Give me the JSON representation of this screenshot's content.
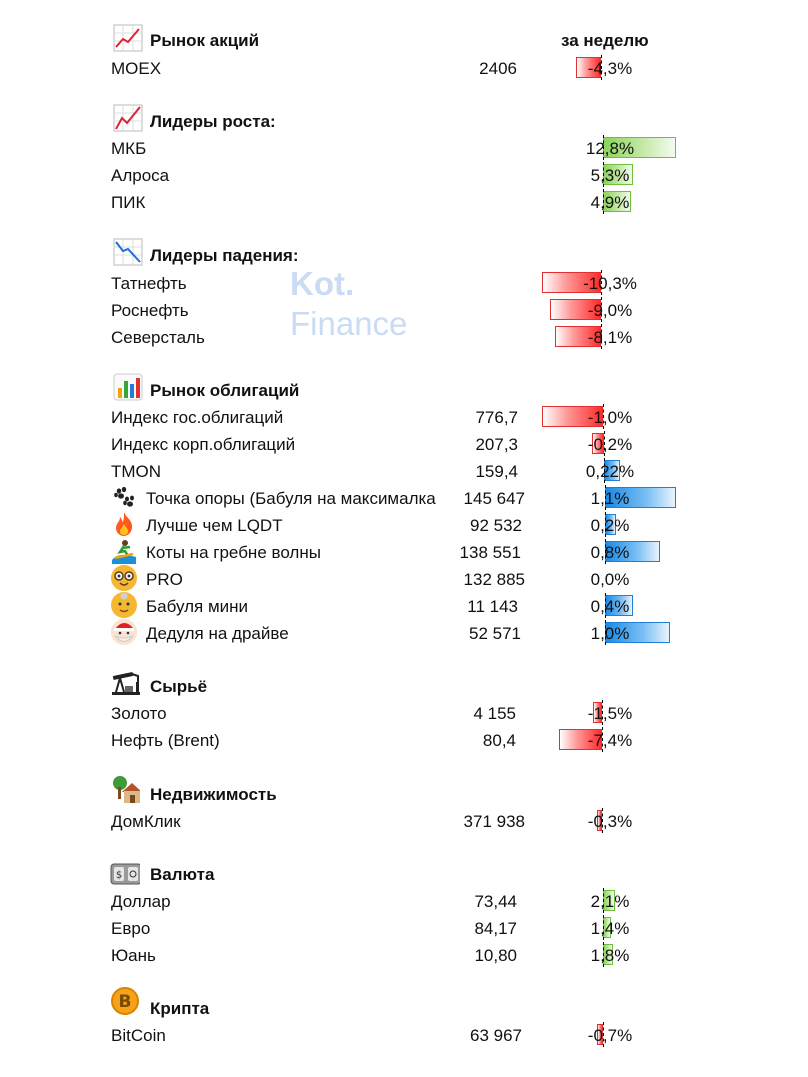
{
  "header": {
    "week_label": "за неделю"
  },
  "watermark": {
    "line1": "Kot.",
    "line2": "Finance"
  },
  "colors": {
    "negative": "#ff2b2b",
    "positive": "#8dd35c",
    "bond_bar": "#1a8ae6"
  },
  "sections": {
    "stocks": {
      "title": "Рынок акций",
      "icon": "chart-up-icon",
      "rows": [
        {
          "name": "MOEX",
          "value": "2406",
          "pct": "-4,3%"
        }
      ]
    },
    "gainers": {
      "title": "Лидеры роста:",
      "icon": "chart-up-icon",
      "rows": [
        {
          "name": "МКБ",
          "pct": "12,8%"
        },
        {
          "name": "Алроса",
          "pct": "5,3%"
        },
        {
          "name": "ПИК",
          "pct": "4,9%"
        }
      ]
    },
    "losers": {
      "title": "Лидеры падения:",
      "icon": "chart-down-icon",
      "rows": [
        {
          "name": "Татнефть",
          "pct": "-10,3%"
        },
        {
          "name": "Роснефть",
          "pct": "-9,0%"
        },
        {
          "name": "Северсталь",
          "pct": "-8,1%"
        }
      ]
    },
    "bonds": {
      "title": "Рынок облигаций",
      "icon": "bar-chart-icon",
      "rows": [
        {
          "name": "Индекс гос.облигаций",
          "value": "776,7",
          "pct": "-1,0%"
        },
        {
          "name": "Индекс корп.облигаций",
          "value": "207,3",
          "pct": "-0,2%"
        },
        {
          "name": "TMON",
          "value": "159,4",
          "pct": "0,22%"
        },
        {
          "name": "Точка опоры (Бабуля на максималка",
          "value": "145 647",
          "pct": "1,1%",
          "icon": "paw-prints-icon"
        },
        {
          "name": "Лучше чем LQDT",
          "value": "92 532",
          "pct": "0,2%",
          "icon": "fire-icon"
        },
        {
          "name": "Коты на гребне волны",
          "value": "138 551",
          "pct": "0,8%",
          "icon": "surfer-icon"
        },
        {
          "name": "PRO",
          "value": "132 885",
          "pct": "0,0%",
          "icon": "nerd-face-icon"
        },
        {
          "name": "Бабуля мини",
          "value": "11 143",
          "pct": "0,4%",
          "icon": "grandma-icon"
        },
        {
          "name": "Дедуля на драйве",
          "value": "52 571",
          "pct": "1,0%",
          "icon": "santa-icon"
        }
      ]
    },
    "commodities": {
      "title": "Сырьё",
      "icon": "oil-pump-icon",
      "rows": [
        {
          "name": "Золото",
          "value": "4 155",
          "pct": "-1,5%"
        },
        {
          "name": "Нефть (Brent)",
          "value": "80,4",
          "pct": "-7,4%"
        }
      ]
    },
    "realty": {
      "title": "Недвижимость",
      "icon": "house-icon",
      "rows": [
        {
          "name": "ДомКлик",
          "value": "371 938",
          "pct": "-0,3%"
        }
      ]
    },
    "currency": {
      "title": "Валюта",
      "icon": "banknote-icon",
      "rows": [
        {
          "name": "Доллар",
          "value": "73,44",
          "pct": "2,1%"
        },
        {
          "name": "Евро",
          "value": "84,17",
          "pct": "1,4%"
        },
        {
          "name": "Юань",
          "value": "10,80",
          "pct": "1,8%"
        }
      ]
    },
    "crypto": {
      "title": "Крипта",
      "icon": "bitcoin-icon",
      "rows": [
        {
          "name": "BitCoin",
          "value": "63 967",
          "pct": "-0,7%"
        }
      ]
    }
  }
}
